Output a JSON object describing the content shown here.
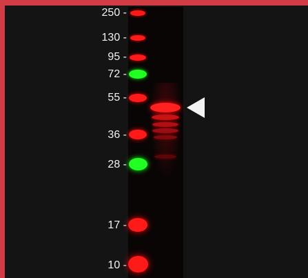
{
  "ladder": {
    "labels": [
      {
        "text": "250 -"
      },
      {
        "text": "130 -"
      },
      {
        "text": "95 -"
      },
      {
        "text": "72 -"
      },
      {
        "text": "55 -"
      },
      {
        "text": "36 -"
      },
      {
        "text": "28 -"
      },
      {
        "text": "17 -"
      },
      {
        "text": "10 -"
      }
    ]
  },
  "colors": {
    "frame": "#d13c45",
    "background": "#141414",
    "band_red": "#ff1a1a",
    "band_green": "#22ff22",
    "arrow": "#f4f4f4"
  }
}
